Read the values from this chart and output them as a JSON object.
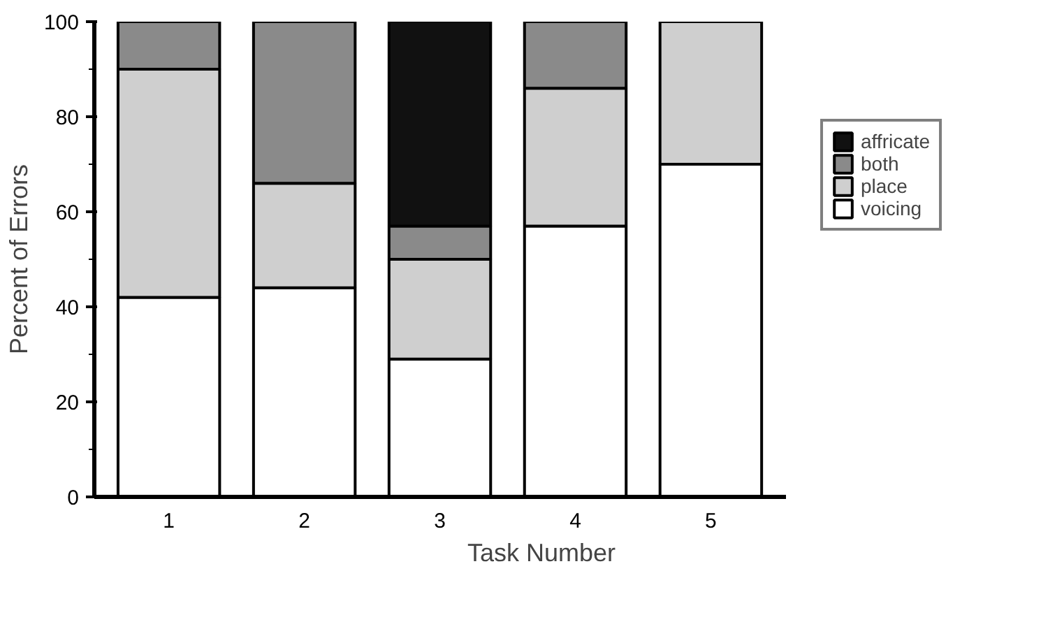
{
  "chart_data": {
    "type": "bar",
    "stacked": true,
    "xlabel": "Task Number",
    "ylabel": "Percent of Errors",
    "categories": [
      "1",
      "2",
      "3",
      "4",
      "5"
    ],
    "series": [
      {
        "name": "voicing",
        "color": "#ffffff",
        "values": [
          42,
          44,
          29,
          57,
          70
        ]
      },
      {
        "name": "place",
        "color": "#cfcfcf",
        "values": [
          48,
          22,
          21,
          29,
          30
        ]
      },
      {
        "name": "both",
        "color": "#8a8a8a",
        "values": [
          10,
          34,
          7,
          14,
          0
        ]
      },
      {
        "name": "affricate",
        "color": "#111111",
        "values": [
          0,
          0,
          43,
          0,
          0
        ]
      }
    ],
    "ylim": [
      0,
      100
    ],
    "yticks": [
      0,
      20,
      40,
      60,
      80,
      100
    ],
    "grid": false,
    "legend": "right"
  }
}
